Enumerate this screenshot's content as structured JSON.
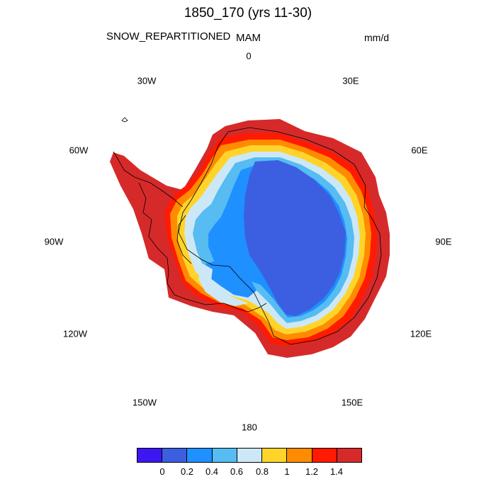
{
  "title": "1850_170 (yrs 11-30)",
  "variable": "SNOW_REPARTITIONED",
  "season": "MAM",
  "units": "mm/d",
  "longitude_labels": {
    "lon_0": "0",
    "lon_30e": "30E",
    "lon_60e": "60E",
    "lon_90e": "90E",
    "lon_120e": "120E",
    "lon_150e": "150E",
    "lon_180": "180",
    "lon_150w": "150W",
    "lon_120w": "120W",
    "lon_90w": "90W",
    "lon_60w": "60W",
    "lon_30w": "30W"
  },
  "colorbar": {
    "colors": [
      "#3d16f2",
      "#3b5fe0",
      "#1e90ff",
      "#56bcf2",
      "#cce8f7",
      "#ffd42a",
      "#ff8c00",
      "#ff1a00",
      "#d62a2a"
    ],
    "labels": [
      "0",
      "0.2",
      "0.4",
      "0.6",
      "0.8",
      "1",
      "1.2",
      "1.4"
    ]
  }
}
